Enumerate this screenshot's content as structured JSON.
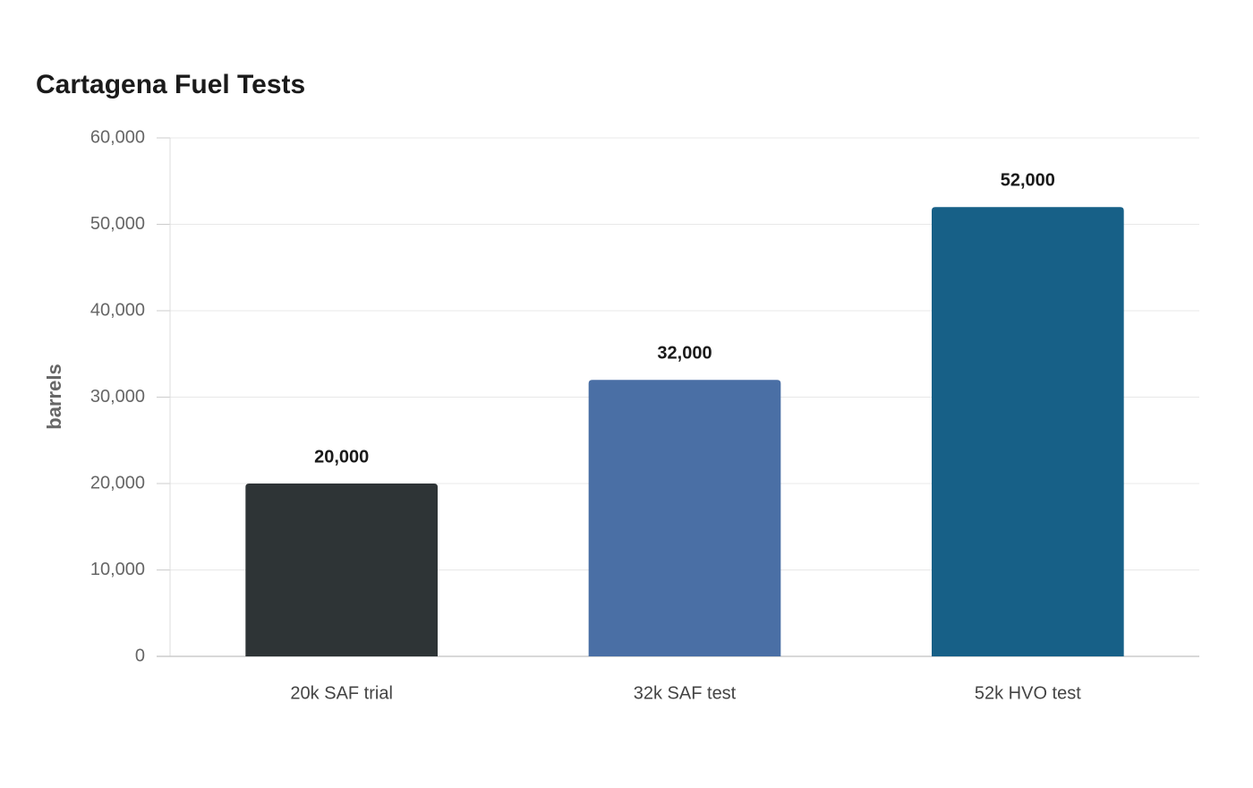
{
  "chart_data": {
    "type": "bar",
    "title": "Cartagena Fuel Tests",
    "y_label": "barrels",
    "categories": [
      "20k SAF trial",
      "32k SAF test",
      "52k HVO test"
    ],
    "values": [
      20000,
      32000,
      52000
    ],
    "value_labels": [
      "20,000",
      "32,000",
      "52,000"
    ],
    "colors": [
      "#2e3436",
      "#4a6fa5",
      "#176087"
    ],
    "ylim": [
      0,
      60000
    ],
    "yticks": [
      0,
      {
        "value": 10000,
        "label": "10,000"
      },
      {
        "value": 20000,
        "label": "20,000"
      },
      {
        "value": 30000,
        "label": "30,000"
      },
      {
        "value": 40000,
        "label": "40,000"
      },
      {
        "value": 50000,
        "label": "50,000"
      },
      {
        "value": 60000,
        "label": "60,000"
      }
    ],
    "grid": true
  }
}
